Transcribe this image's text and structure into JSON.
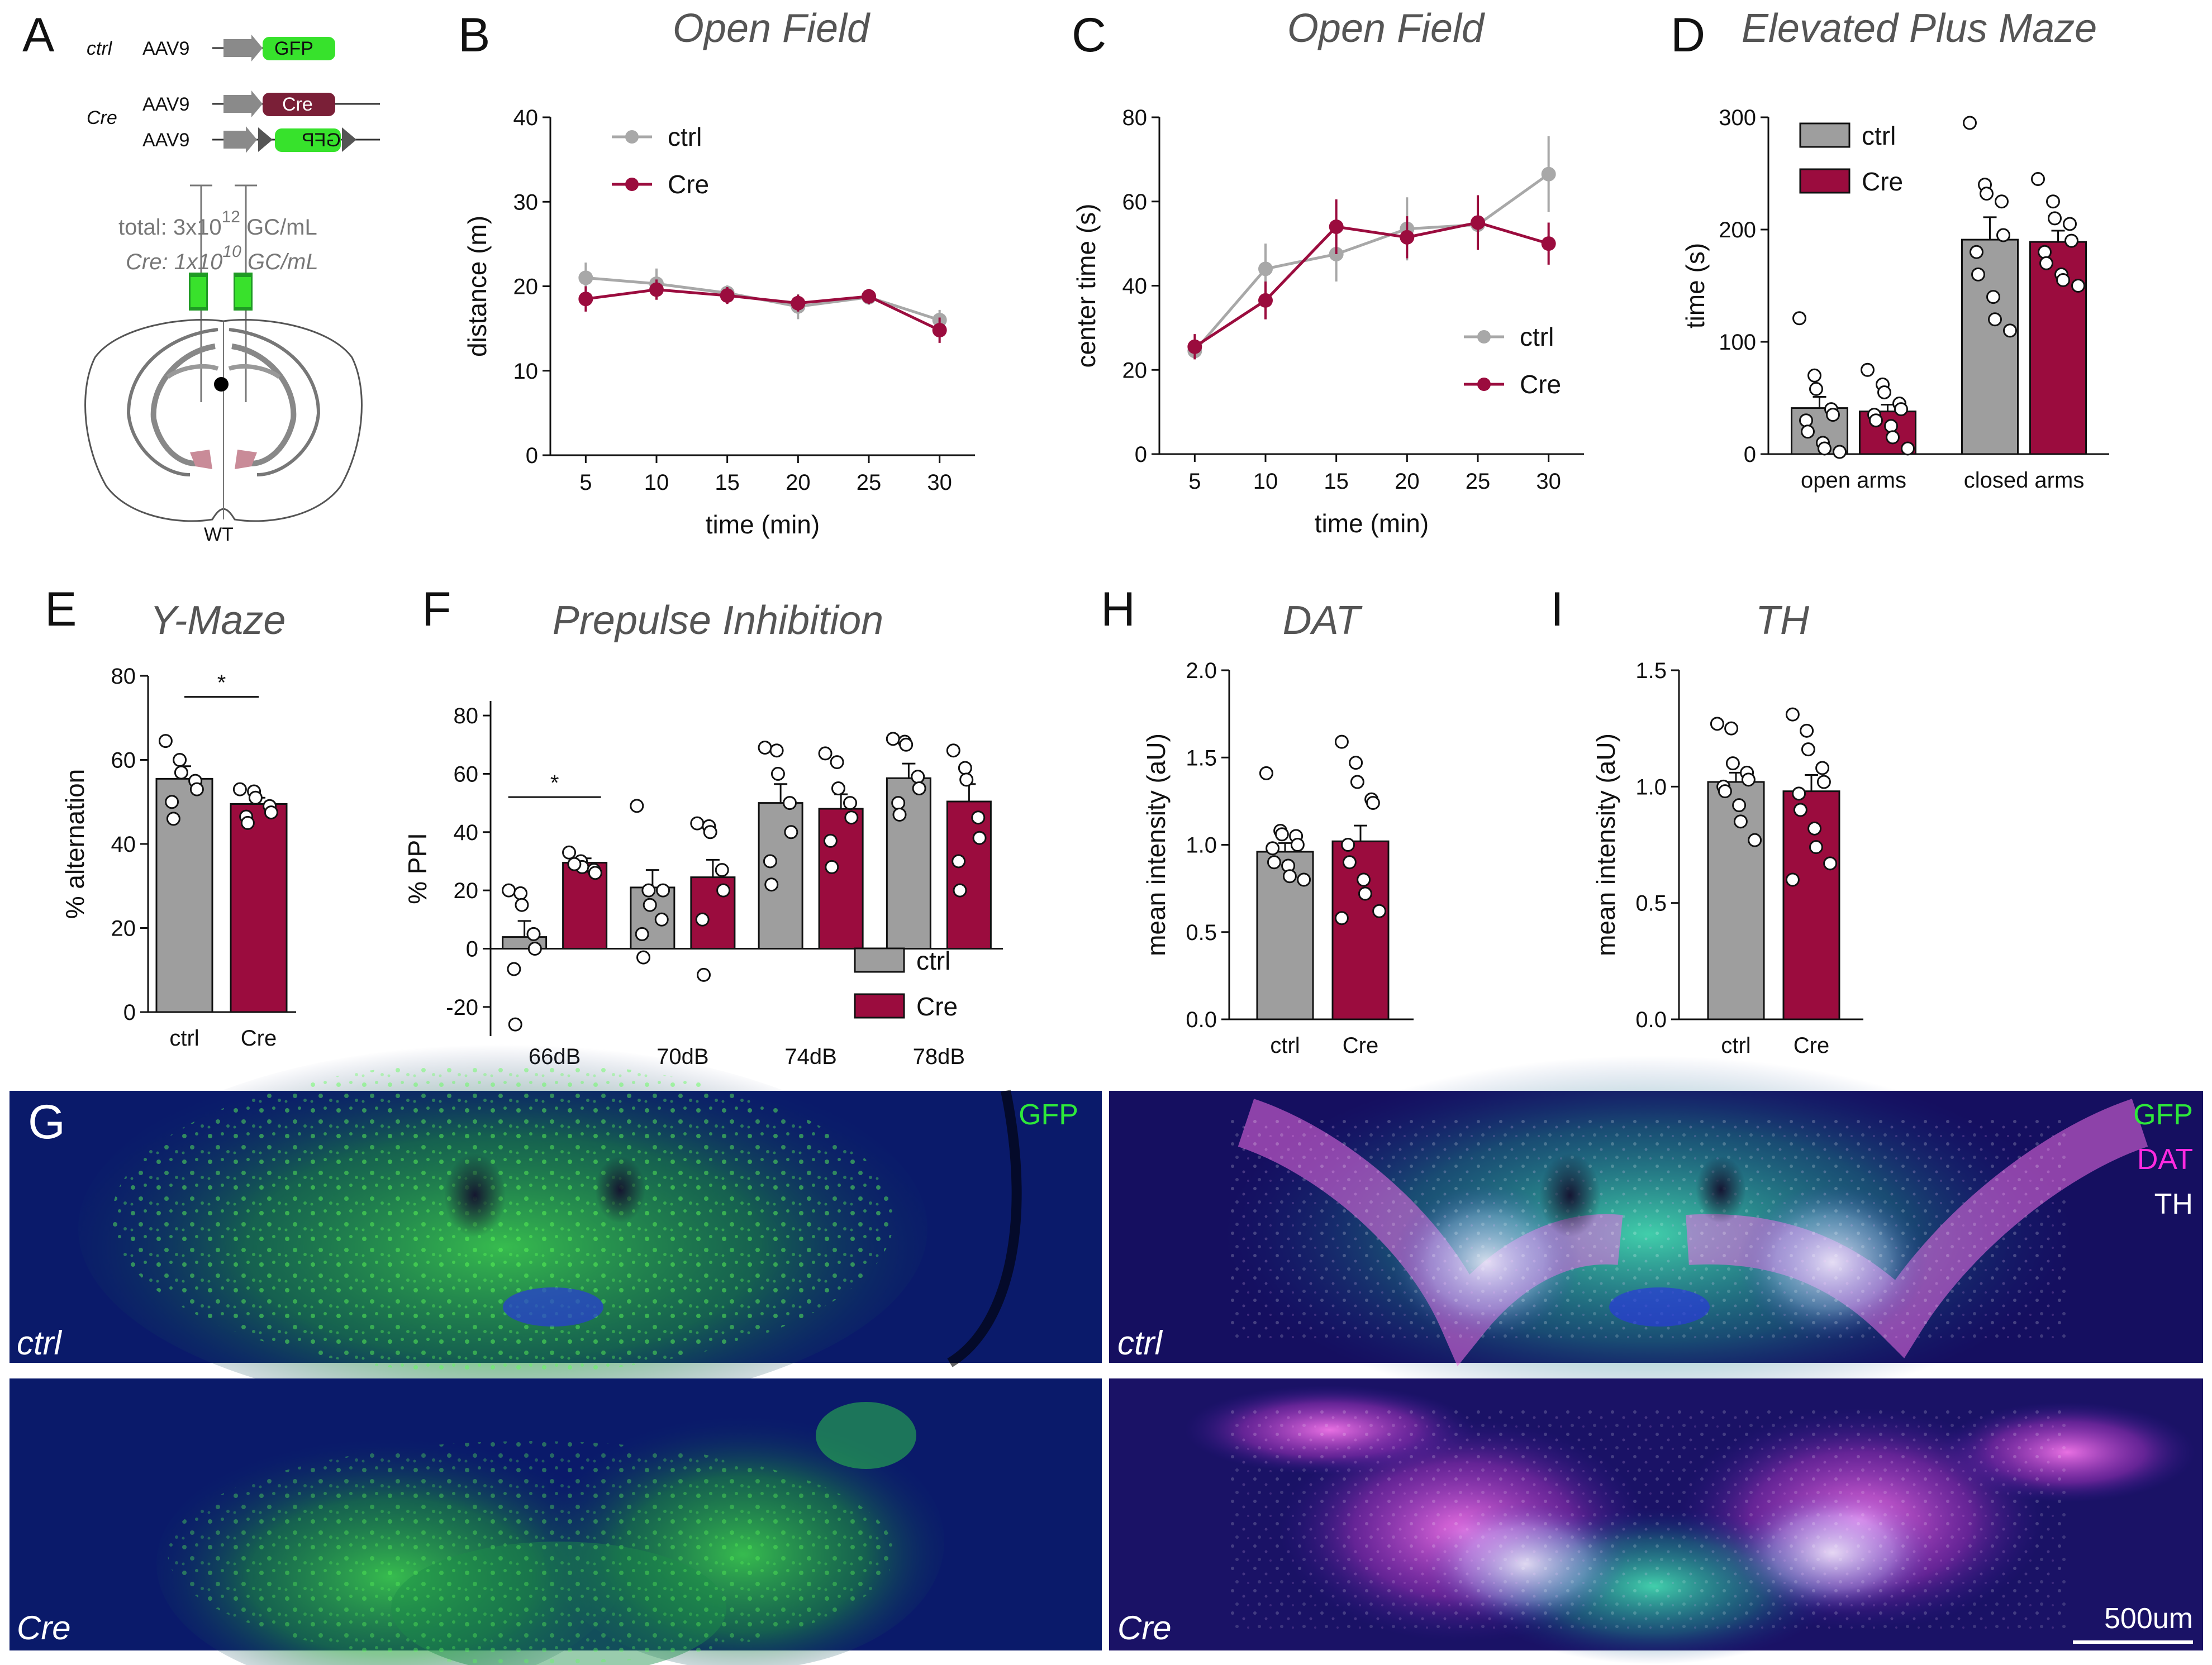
{
  "colors": {
    "ctrl": "#9e9e9e",
    "cre": "#9b0c3e",
    "ctrl_line": "#a8a8a8"
  },
  "panel_labels": [
    "A",
    "B",
    "C",
    "D",
    "E",
    "F",
    "G",
    "H",
    "I"
  ],
  "schematic": {
    "ctrl_label": "ctrl",
    "cre_label": "Cre",
    "vector": "AAV9",
    "gfp": "GFP",
    "gfp_flipped": "GFP",
    "cre_box": "Cre",
    "total_prefix": "total: 3x10",
    "total_exp": "12",
    "total_suffix": " GC/mL",
    "cre_prefix": "Cre: 1x10",
    "cre_exp": "10",
    "cre_suffix": " GC/mL",
    "mouse": "WT"
  },
  "microscopy": {
    "ctrl_label": "ctrl",
    "cre_label": "Cre",
    "gfp": "GFP",
    "dat": "DAT",
    "th": "TH",
    "scalebar": "500um"
  },
  "chart_data": [
    {
      "id": "B",
      "type": "line",
      "title": "Open Field",
      "xlabel": "time (min)",
      "ylabel": "distance (m)",
      "x": [
        5,
        10,
        15,
        20,
        25,
        30
      ],
      "ylim": [
        0,
        40
      ],
      "yticks": [
        0,
        10,
        20,
        30,
        40
      ],
      "legend": "top-left",
      "series": [
        {
          "name": "ctrl",
          "values": [
            21,
            20.3,
            19.2,
            17.6,
            18.7,
            16
          ],
          "err": [
            1.8,
            1.8,
            0.9,
            1.5,
            0.9,
            1.2
          ]
        },
        {
          "name": "Cre",
          "values": [
            18.5,
            19.6,
            18.9,
            18,
            18.8,
            14.8
          ],
          "err": [
            1.5,
            1.2,
            1,
            1,
            0.9,
            1.5
          ]
        }
      ]
    },
    {
      "id": "C",
      "type": "line",
      "title": "Open Field",
      "xlabel": "time (min)",
      "ylabel": "center time (s)",
      "x": [
        5,
        10,
        15,
        20,
        25,
        30
      ],
      "ylim": [
        0,
        80
      ],
      "yticks": [
        0,
        20,
        40,
        60,
        80
      ],
      "legend": "bottom-right",
      "series": [
        {
          "name": "ctrl",
          "values": [
            24.5,
            44,
            47.5,
            53.5,
            54.5,
            66.5
          ],
          "err": [
            2,
            6,
            6.5,
            7.5,
            5.5,
            9
          ]
        },
        {
          "name": "Cre",
          "values": [
            25.5,
            36.5,
            54,
            51.5,
            55,
            50
          ],
          "err": [
            3,
            4.5,
            6.5,
            5,
            6.5,
            5
          ]
        }
      ]
    },
    {
      "id": "D",
      "type": "bar",
      "title": "Elevated Plus Maze",
      "xlabel": "",
      "ylabel": "time (s)",
      "categories": [
        "open arms",
        "closed arms"
      ],
      "ylim": [
        0,
        300
      ],
      "yticks": [
        0,
        100,
        200,
        300
      ],
      "legend": "top-left",
      "series": [
        {
          "name": "ctrl",
          "values": [
            41,
            191
          ],
          "err": [
            10,
            20
          ],
          "points": [
            [
              121,
              70,
              58,
              40,
              35,
              30,
              20,
              10,
              5,
              2
            ],
            [
              295,
              240,
              232,
              225,
              195,
              180,
              160,
              140,
              120,
              110
            ]
          ]
        },
        {
          "name": "Cre",
          "values": [
            38,
            189
          ],
          "err": [
            6,
            10
          ],
          "points": [
            [
              75,
              62,
              55,
              45,
              40,
              35,
              30,
              25,
              15,
              5
            ],
            [
              245,
              225,
              210,
              205,
              190,
              180,
              170,
              160,
              155,
              150
            ]
          ]
        }
      ]
    },
    {
      "id": "E",
      "type": "bar",
      "title": "Y-Maze",
      "xlabel": "",
      "ylabel": "% alternation",
      "categories": [
        "ctrl",
        "Cre"
      ],
      "ylim": [
        0,
        80
      ],
      "yticks": [
        0,
        20,
        40,
        60,
        80
      ],
      "significance": {
        "label": "*",
        "between": [
          "ctrl",
          "Cre"
        ]
      },
      "series": [
        {
          "name": "ctrl",
          "values": [
            55.5,
            49.5
          ],
          "err": [
            3,
            1.5
          ],
          "points": [
            [
              64.5,
              60,
              57,
              55,
              53,
              50,
              46
            ],
            [
              53,
              52.5,
              51,
              49,
              47.5,
              46.5,
              45
            ]
          ]
        }
      ]
    },
    {
      "id": "F",
      "type": "bar",
      "title": "Prepulse Inhibition",
      "xlabel": "",
      "ylabel": "% PPI",
      "categories": [
        "66dB",
        "70dB",
        "74dB",
        "78dB"
      ],
      "ylim": [
        -30,
        85
      ],
      "yticks": [
        -20,
        0,
        20,
        40,
        60,
        80
      ],
      "legend": "bottom-right",
      "significance": {
        "label": "*",
        "category": "66dB"
      },
      "series": [
        {
          "name": "ctrl",
          "values": [
            4,
            21,
            50,
            58.5
          ],
          "err": [
            5.5,
            6,
            6.5,
            5
          ],
          "points": [
            [
              20,
              19,
              15,
              5,
              0,
              -7,
              -26
            ],
            [
              49,
              20,
              15,
              10,
              20,
              5,
              -3
            ],
            [
              69,
              68,
              60,
              50,
              40,
              30,
              22
            ],
            [
              72,
              71,
              70,
              59,
              55,
              50,
              46
            ]
          ]
        },
        {
          "name": "Cre",
          "values": [
            29.5,
            24.5,
            48,
            50.5
          ],
          "err": [
            1.5,
            6,
            5,
            6
          ],
          "points": [
            [
              33,
              30,
              28,
              27,
              26,
              29
            ],
            [
              43,
              42,
              40,
              27,
              20,
              10,
              -9
            ],
            [
              67,
              64,
              55,
              50,
              45,
              37,
              28
            ],
            [
              68,
              62,
              58,
              45,
              38,
              30,
              20
            ]
          ]
        }
      ]
    },
    {
      "id": "H",
      "type": "bar",
      "title": "DAT",
      "xlabel": "",
      "ylabel": "mean intensity (aU)",
      "categories": [
        "ctrl",
        "Cre"
      ],
      "ylim": [
        0,
        2.0
      ],
      "yticks": [
        0.0,
        0.5,
        1.0,
        1.5,
        2.0
      ],
      "ytick_labels": [
        "0.0",
        "0.5",
        "1.0",
        "1.5",
        "2.0"
      ],
      "series": [
        {
          "name": "ctrl",
          "values": [
            0.96,
            1.02
          ],
          "err": [
            0.05,
            0.09
          ],
          "points": [
            [
              1.41,
              1.08,
              1.06,
              1.05,
              1.0,
              0.98,
              0.9,
              0.88,
              0.82,
              0.8
            ],
            [
              1.59,
              1.47,
              1.36,
              1.26,
              1.24,
              1.0,
              0.9,
              0.8,
              0.72,
              0.62,
              0.58
            ]
          ]
        }
      ]
    },
    {
      "id": "I",
      "type": "bar",
      "title": "TH",
      "xlabel": "",
      "ylabel": "mean intensity (aU)",
      "categories": [
        "ctrl",
        "Cre"
      ],
      "ylim": [
        0,
        1.5
      ],
      "yticks": [
        0.0,
        0.5,
        1.0,
        1.5
      ],
      "ytick_labels": [
        "0.0",
        "0.5",
        "1.0",
        "1.5"
      ],
      "series": [
        {
          "name": "ctrl",
          "values": [
            1.02,
            0.98
          ],
          "err": [
            0.04,
            0.07
          ],
          "points": [
            [
              1.27,
              1.25,
              1.1,
              1.06,
              1.03,
              1.0,
              0.98,
              0.92,
              0.85,
              0.77
            ],
            [
              1.31,
              1.24,
              1.16,
              1.08,
              1.02,
              0.97,
              0.9,
              0.82,
              0.74,
              0.67,
              0.6
            ]
          ]
        }
      ]
    }
  ]
}
